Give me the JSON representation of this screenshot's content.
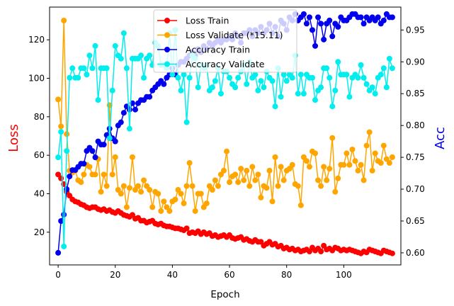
{
  "chart_data": {
    "type": "line",
    "title": "",
    "xlabel": "Epoch",
    "ylabel": "Loss",
    "ylabel_right": "Acc",
    "ylabel_color": "#ff0000",
    "ylabel_right_color": "#0000ee",
    "xlim": [
      -3,
      120
    ],
    "ylim": [
      3,
      137
    ],
    "ylim_right": [
      0.581,
      0.986
    ],
    "x_ticks": [
      0,
      20,
      40,
      60,
      80,
      100
    ],
    "x_tick_labels": [
      "0",
      "20",
      "40",
      "60",
      "80",
      "100"
    ],
    "y_ticks": [
      20,
      40,
      60,
      80,
      100,
      120
    ],
    "y_tick_labels": [
      "20",
      "40",
      "60",
      "80",
      "100",
      "120"
    ],
    "y_right_ticks": [
      0.6,
      0.65,
      0.7,
      0.75,
      0.8,
      0.85,
      0.9,
      0.95
    ],
    "y_right_tick_labels": [
      "0.60",
      "0.65",
      "0.70",
      "0.75",
      "0.80",
      "0.85",
      "0.90",
      "0.95"
    ],
    "grid": false,
    "legend_position": "top-center",
    "x": [
      0,
      1,
      2,
      3,
      4,
      5,
      6,
      7,
      8,
      9,
      10,
      11,
      12,
      13,
      14,
      15,
      16,
      17,
      18,
      19,
      20,
      21,
      22,
      23,
      24,
      25,
      26,
      27,
      28,
      29,
      30,
      31,
      32,
      33,
      34,
      35,
      36,
      37,
      38,
      39,
      40,
      41,
      42,
      43,
      44,
      45,
      46,
      47,
      48,
      49,
      50,
      51,
      52,
      53,
      54,
      55,
      56,
      57,
      58,
      59,
      60,
      61,
      62,
      63,
      64,
      65,
      66,
      67,
      68,
      69,
      70,
      71,
      72,
      73,
      74,
      75,
      76,
      77,
      78,
      79,
      80,
      81,
      82,
      83,
      84,
      85,
      86,
      87,
      88,
      89,
      90,
      91,
      92,
      93,
      94,
      95,
      96,
      97,
      98,
      99,
      100,
      101,
      102,
      103,
      104,
      105,
      106,
      107,
      108,
      109,
      110,
      111,
      112,
      113,
      114,
      115,
      116,
      117
    ],
    "series": [
      {
        "name": "Loss Train",
        "axis": "left",
        "color": "#ff0000",
        "values": [
          50,
          48,
          45,
          41,
          39,
          37,
          36,
          35.5,
          34.5,
          34,
          33,
          32.5,
          33,
          33,
          32,
          31.5,
          32,
          31,
          31.5,
          30.5,
          30,
          31,
          30,
          29,
          28.5,
          28,
          29,
          27,
          27.5,
          26,
          26,
          25,
          25.5,
          26,
          24.5,
          24,
          24.5,
          23.5,
          23,
          23,
          22.5,
          22,
          22,
          21.5,
          21,
          22,
          19.5,
          20,
          19.5,
          20.5,
          19,
          20,
          19,
          19.5,
          18,
          18.5,
          17.5,
          18,
          18.5,
          17.5,
          18.5,
          17,
          16.5,
          17,
          17.5,
          16,
          16.5,
          15.5,
          15,
          16,
          15,
          15,
          13,
          14,
          15,
          13.5,
          14,
          12.5,
          13,
          11.5,
          12,
          11,
          11.5,
          10.5,
          11,
          10,
          10.5,
          11,
          10,
          12,
          10.5,
          11.5,
          10,
          13,
          11,
          11.5,
          10.5,
          12,
          11.5,
          10.5,
          11,
          10.5,
          11,
          10.5,
          10,
          9.5,
          9,
          10,
          9.5,
          11,
          10.5,
          10,
          9.5,
          9,
          10.5,
          10,
          9.5,
          9
        ]
      },
      {
        "name": "Loss Validate (*15.11)",
        "axis": "left",
        "color": "#ffa500",
        "values": [
          89,
          75,
          130,
          71,
          52,
          51,
          52,
          47,
          46,
          50,
          55,
          54,
          50,
          50,
          58,
          41,
          50,
          44,
          86,
          50,
          59,
          42,
          40,
          44,
          33,
          43,
          59,
          42,
          44,
          41,
          47,
          44,
          42,
          33,
          41,
          40,
          31,
          36,
          33,
          31,
          36,
          37,
          42,
          40,
          35,
          44,
          56,
          44,
          31,
          40,
          40,
          33,
          35,
          44,
          42,
          47,
          44,
          50,
          52,
          62,
          46,
          49,
          50,
          46,
          53,
          47,
          52,
          44,
          54,
          47,
          50,
          38,
          44,
          43,
          52,
          36,
          59,
          44,
          54,
          47,
          52,
          53,
          55,
          45,
          44,
          34,
          59,
          57,
          54,
          62,
          61,
          47,
          44,
          54,
          47,
          53,
          69,
          41,
          48,
          55,
          55,
          61,
          55,
          63,
          57,
          52,
          55,
          47,
          65,
          72,
          52,
          61,
          57,
          56,
          65,
          58,
          56,
          59
        ]
      },
      {
        "name": "Accuracy Train",
        "axis": "right",
        "color": "#0000ee",
        "values": [
          0.6,
          0.65,
          0.66,
          0.7,
          0.72,
          0.73,
          0.73,
          0.735,
          0.74,
          0.74,
          0.76,
          0.765,
          0.76,
          0.75,
          0.775,
          0.77,
          0.77,
          0.785,
          0.795,
          0.78,
          0.775,
          0.8,
          0.805,
          0.82,
          0.83,
          0.825,
          0.835,
          0.825,
          0.835,
          0.84,
          0.84,
          0.845,
          0.845,
          0.855,
          0.86,
          0.865,
          0.87,
          0.865,
          0.875,
          0.88,
          0.89,
          0.88,
          0.895,
          0.9,
          0.9,
          0.905,
          0.91,
          0.915,
          0.91,
          0.92,
          0.915,
          0.925,
          0.92,
          0.93,
          0.925,
          0.93,
          0.935,
          0.93,
          0.935,
          0.935,
          0.94,
          0.935,
          0.945,
          0.94,
          0.93,
          0.945,
          0.945,
          0.95,
          0.94,
          0.95,
          0.945,
          0.955,
          0.945,
          0.95,
          0.96,
          0.945,
          0.955,
          0.94,
          0.965,
          0.96,
          0.95,
          0.97,
          0.965,
          0.975,
          0.965,
          0.97,
          0.975,
          0.96,
          0.97,
          0.95,
          0.925,
          0.97,
          0.96,
          0.935,
          0.96,
          0.965,
          0.94,
          0.96,
          0.955,
          0.97,
          0.965,
          0.965,
          0.97,
          0.975,
          0.975,
          0.97,
          0.97,
          0.96,
          0.97,
          0.965,
          0.97,
          0.965,
          0.97,
          0.96,
          0.965,
          0.975,
          0.97,
          0.97
        ]
      },
      {
        "name": "Accuracy Validate",
        "axis": "right",
        "color": "#00eeee",
        "values": [
          0.75,
          0.79,
          0.61,
          0.76,
          0.875,
          0.89,
          0.875,
          0.875,
          0.89,
          0.89,
          0.88,
          0.91,
          0.89,
          0.925,
          0.84,
          0.89,
          0.89,
          0.89,
          0.78,
          0.855,
          0.925,
          0.91,
          0.905,
          0.945,
          0.89,
          0.795,
          0.905,
          0.905,
          0.905,
          0.91,
          0.875,
          0.905,
          0.91,
          0.895,
          0.93,
          0.925,
          0.895,
          0.895,
          0.89,
          0.945,
          0.88,
          0.95,
          0.875,
          0.855,
          0.88,
          0.805,
          0.875,
          0.91,
          0.905,
          0.86,
          0.895,
          0.89,
          0.895,
          0.855,
          0.86,
          0.87,
          0.89,
          0.85,
          0.885,
          0.885,
          0.875,
          0.865,
          0.86,
          0.875,
          0.885,
          0.895,
          0.865,
          0.9,
          0.875,
          0.88,
          0.855,
          0.87,
          0.86,
          0.885,
          0.875,
          0.87,
          0.83,
          0.89,
          0.845,
          0.88,
          0.87,
          0.88,
          0.875,
          0.91,
          0.85,
          0.88,
          0.85,
          0.88,
          0.875,
          0.875,
          0.84,
          0.855,
          0.86,
          0.89,
          0.89,
          0.875,
          0.83,
          0.855,
          0.9,
          0.88,
          0.88,
          0.88,
          0.845,
          0.875,
          0.88,
          0.875,
          0.895,
          0.875,
          0.865,
          0.855,
          0.86,
          0.85,
          0.875,
          0.88,
          0.89,
          0.86,
          0.905,
          0.89
        ]
      }
    ]
  }
}
